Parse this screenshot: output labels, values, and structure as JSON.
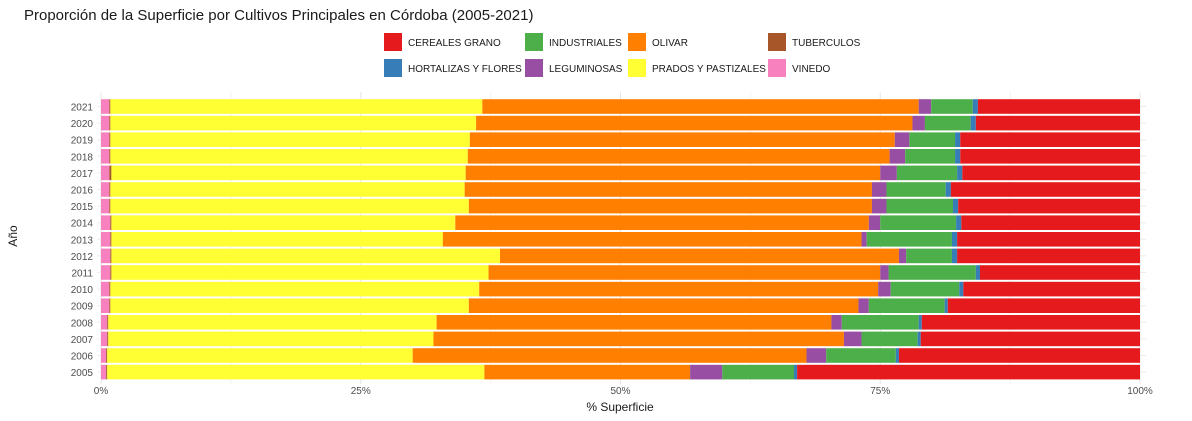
{
  "chart_data": {
    "type": "bar",
    "orientation": "horizontal",
    "stacked": "percent",
    "title": "Proporción de la Superficie por Cultivos Principales en Córdoba (2005-2021)",
    "xlabel": "% Superficie",
    "ylabel": "Año",
    "xlim": [
      0,
      100
    ],
    "x_ticks": [
      "0%",
      "25%",
      "50%",
      "75%",
      "100%"
    ],
    "legend_position": "top",
    "grid": true,
    "categories": [
      "2021",
      "2020",
      "2019",
      "2018",
      "2017",
      "2016",
      "2015",
      "2014",
      "2013",
      "2012",
      "2011",
      "2010",
      "2009",
      "2008",
      "2007",
      "2006",
      "2005"
    ],
    "series": [
      {
        "name": "VINEDO",
        "color": "#F781BF",
        "values": [
          0.8,
          0.8,
          0.8,
          0.8,
          0.8,
          0.8,
          0.8,
          0.9,
          0.9,
          0.9,
          0.9,
          0.8,
          0.8,
          0.6,
          0.6,
          0.5,
          0.5
        ]
      },
      {
        "name": "TUBERCULOS",
        "color": "#A65628",
        "values": [
          0.1,
          0.1,
          0.1,
          0.1,
          0.2,
          0.1,
          0.1,
          0.1,
          0.1,
          0.1,
          0.1,
          0.1,
          0.1,
          0.1,
          0.1,
          0.1,
          0.1
        ]
      },
      {
        "name": "PRADOS Y PASTIZALES",
        "color": "#FFFF33",
        "values": [
          35.8,
          35.2,
          34.6,
          34.4,
          34.1,
          34.1,
          34.5,
          33.1,
          31.9,
          37.4,
          36.3,
          35.5,
          34.5,
          31.6,
          31.3,
          29.4,
          36.3
        ]
      },
      {
        "name": "OLIVAR",
        "color": "#FF7F00",
        "values": [
          42.0,
          42.0,
          40.9,
          40.6,
          39.9,
          39.2,
          38.8,
          39.8,
          40.3,
          38.4,
          37.7,
          38.4,
          37.5,
          38.0,
          39.5,
          37.9,
          19.8
        ]
      },
      {
        "name": "LEGUMINOSAS",
        "color": "#984EA3",
        "values": [
          1.2,
          1.2,
          1.4,
          1.5,
          1.6,
          1.4,
          1.4,
          1.1,
          0.5,
          0.7,
          0.8,
          1.2,
          1.0,
          1.0,
          1.7,
          1.9,
          3.1
        ]
      },
      {
        "name": "INDUSTRIALES",
        "color": "#4DAF4A",
        "values": [
          4.0,
          4.4,
          4.4,
          4.8,
          5.8,
          5.7,
          6.4,
          7.3,
          8.2,
          4.4,
          8.4,
          6.6,
          7.3,
          7.4,
          5.4,
          6.7,
          6.9
        ]
      },
      {
        "name": "HORTALIZAS Y FLORES",
        "color": "#377EB8",
        "values": [
          0.5,
          0.5,
          0.5,
          0.5,
          0.5,
          0.5,
          0.5,
          0.5,
          0.5,
          0.5,
          0.4,
          0.4,
          0.3,
          0.3,
          0.3,
          0.3,
          0.3
        ]
      },
      {
        "name": "CEREALES GRANO",
        "color": "#E41A1C",
        "values": [
          15.6,
          15.8,
          17.3,
          17.3,
          17.1,
          18.2,
          17.5,
          17.2,
          17.6,
          17.6,
          15.4,
          17.0,
          18.5,
          21.0,
          21.1,
          23.2,
          33.0
        ]
      }
    ],
    "legend_order": [
      "CEREALES GRANO",
      "INDUSTRIALES",
      "OLIVAR",
      "TUBERCULOS",
      "HORTALIZAS Y FLORES",
      "LEGUMINOSAS",
      "PRADOS Y PASTIZALES",
      "VINEDO"
    ]
  }
}
